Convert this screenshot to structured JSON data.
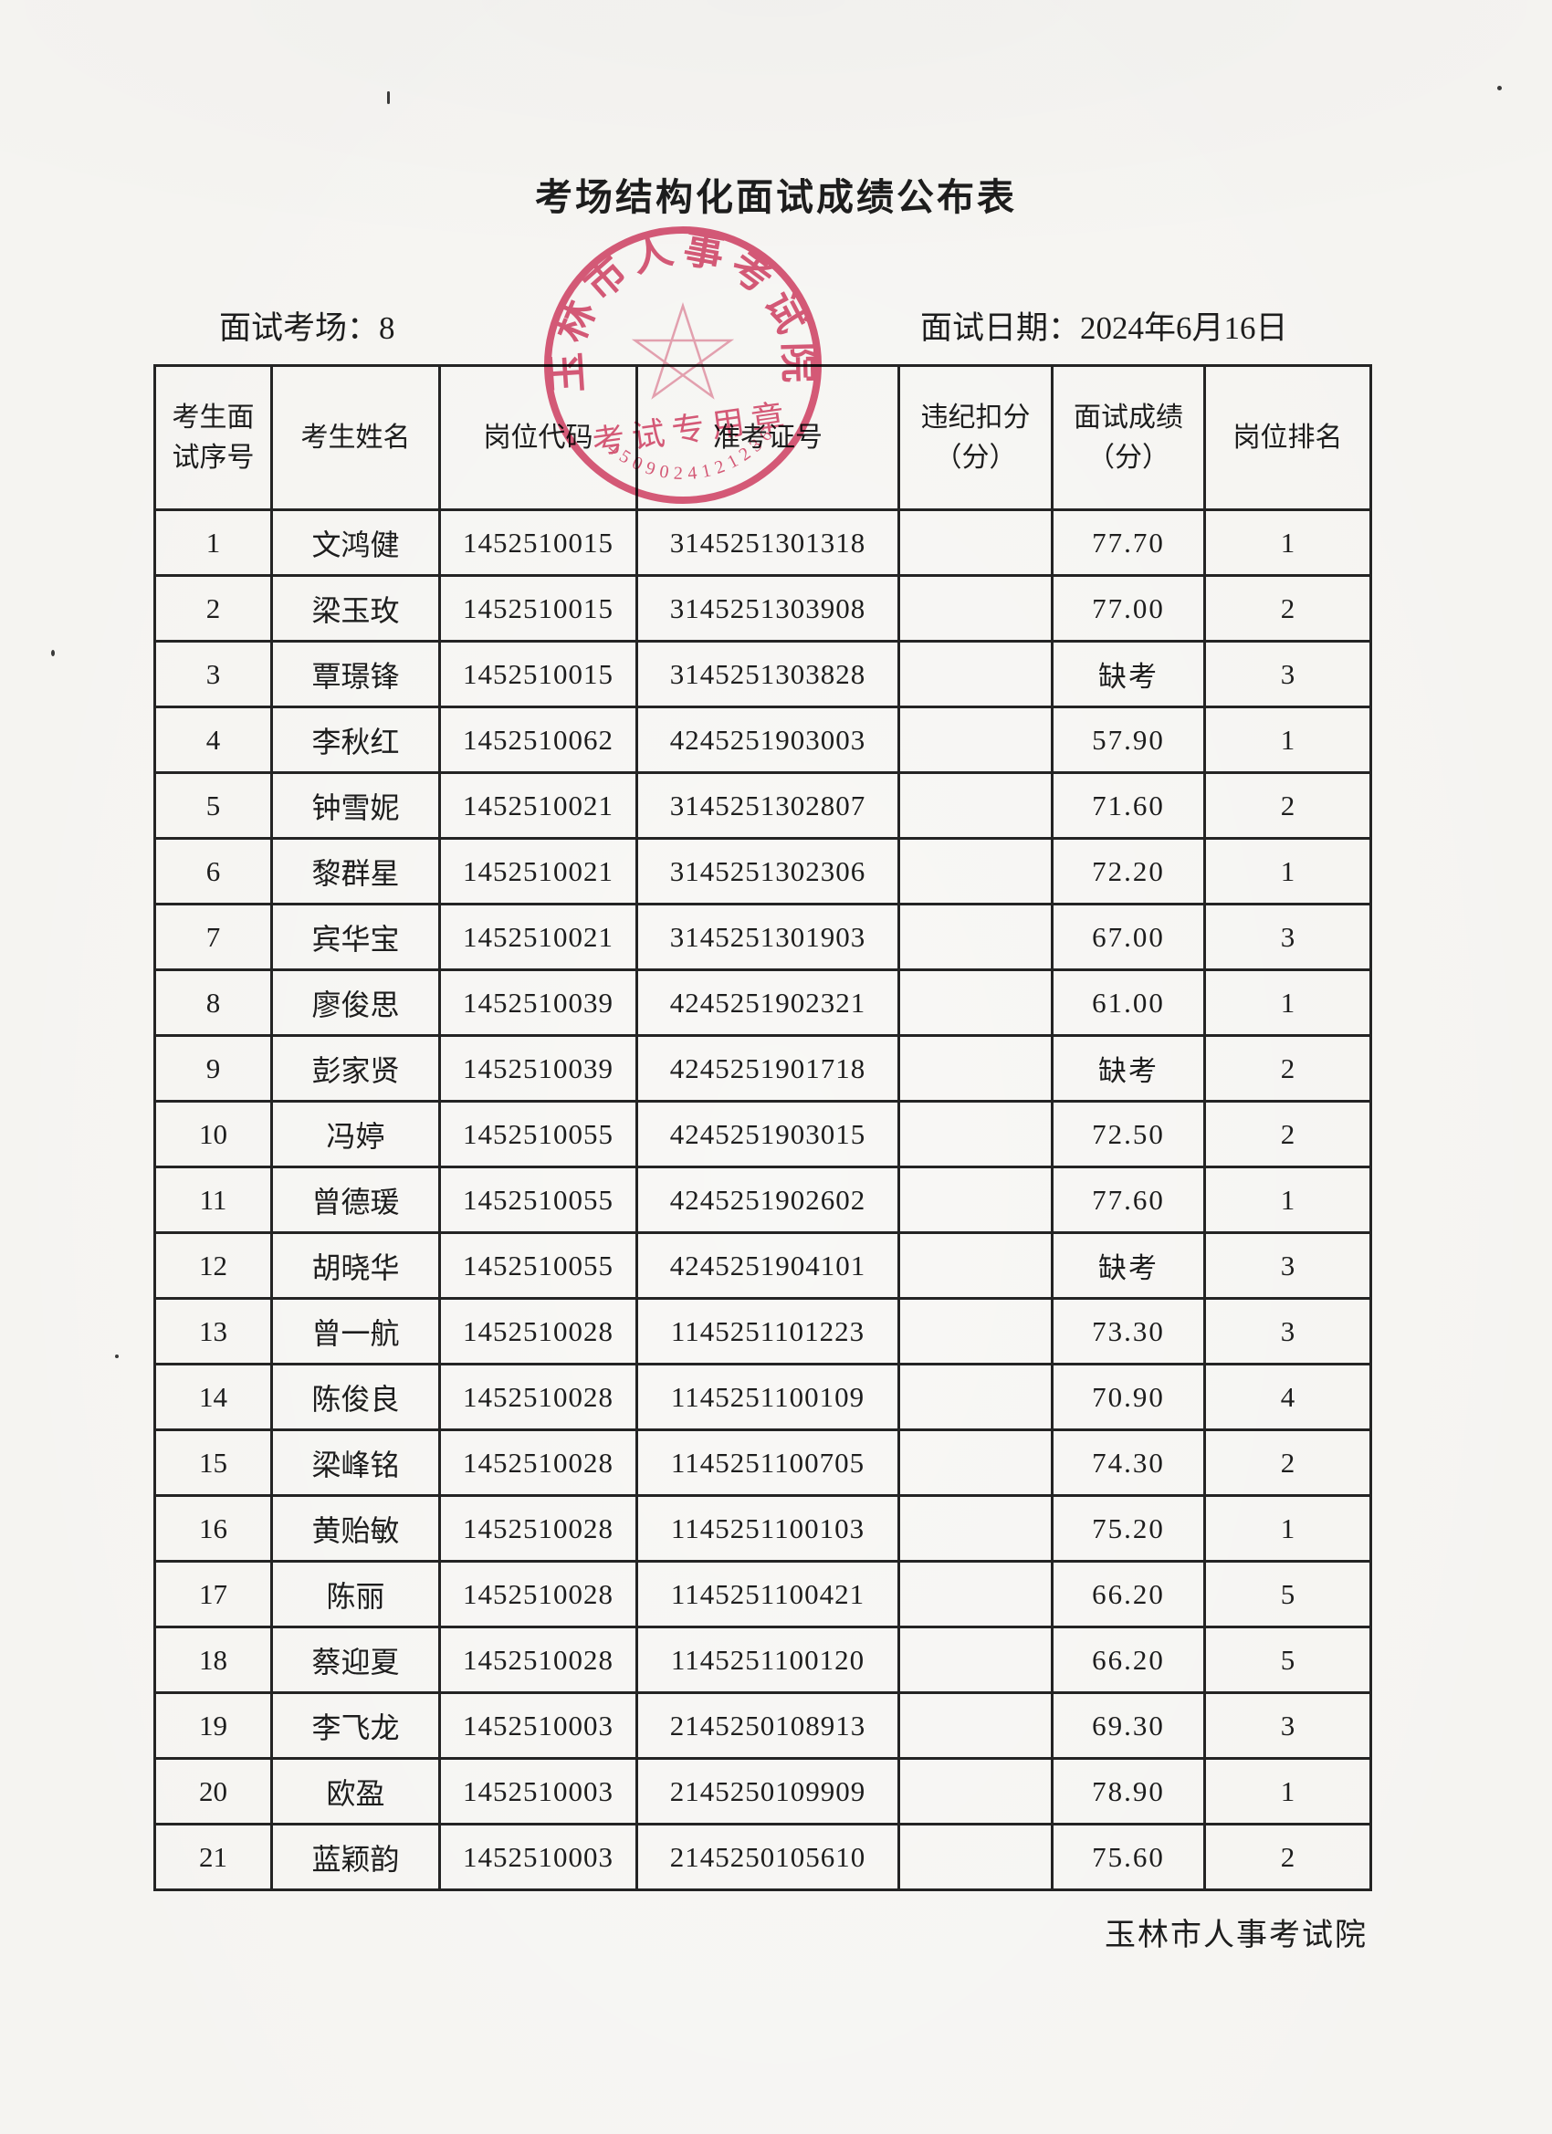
{
  "page": {
    "title": "考场结构化面试成绩公布表",
    "room_label": "面试考场：8",
    "date_label": "面试日期：2024年6月16日",
    "footer": "玉林市人事考试院"
  },
  "stamp": {
    "arc_text": "玉林市人事考试院",
    "inner_text": "考试专用章",
    "number": "4509024121236",
    "color": "#d6456a"
  },
  "table": {
    "headers": [
      {
        "lines": [
          "考生面",
          "试序号"
        ]
      },
      {
        "lines": [
          "考生姓名"
        ]
      },
      {
        "lines": [
          "岗位代码"
        ]
      },
      {
        "lines": [
          "准考证号"
        ]
      },
      {
        "lines": [
          "违纪扣分",
          "（分）"
        ]
      },
      {
        "lines": [
          "面试成绩",
          "（分）"
        ]
      },
      {
        "lines": [
          "岗位排名"
        ]
      }
    ],
    "rows": [
      [
        "1",
        "文鸿健",
        "1452510015",
        "3145251301318",
        "",
        "77.70",
        "1"
      ],
      [
        "2",
        "梁玉玫",
        "1452510015",
        "3145251303908",
        "",
        "77.00",
        "2"
      ],
      [
        "3",
        "覃璟锋",
        "1452510015",
        "3145251303828",
        "",
        "缺考",
        "3"
      ],
      [
        "4",
        "李秋红",
        "1452510062",
        "4245251903003",
        "",
        "57.90",
        "1"
      ],
      [
        "5",
        "钟雪妮",
        "1452510021",
        "3145251302807",
        "",
        "71.60",
        "2"
      ],
      [
        "6",
        "黎群星",
        "1452510021",
        "3145251302306",
        "",
        "72.20",
        "1"
      ],
      [
        "7",
        "宾华宝",
        "1452510021",
        "3145251301903",
        "",
        "67.00",
        "3"
      ],
      [
        "8",
        "廖俊思",
        "1452510039",
        "4245251902321",
        "",
        "61.00",
        "1"
      ],
      [
        "9",
        "彭家贤",
        "1452510039",
        "4245251901718",
        "",
        "缺考",
        "2"
      ],
      [
        "10",
        "冯婷",
        "1452510055",
        "4245251903015",
        "",
        "72.50",
        "2"
      ],
      [
        "11",
        "曾德瑗",
        "1452510055",
        "4245251902602",
        "",
        "77.60",
        "1"
      ],
      [
        "12",
        "胡晓华",
        "1452510055",
        "4245251904101",
        "",
        "缺考",
        "3"
      ],
      [
        "13",
        "曾一航",
        "1452510028",
        "1145251101223",
        "",
        "73.30",
        "3"
      ],
      [
        "14",
        "陈俊良",
        "1452510028",
        "1145251100109",
        "",
        "70.90",
        "4"
      ],
      [
        "15",
        "梁峰铭",
        "1452510028",
        "1145251100705",
        "",
        "74.30",
        "2"
      ],
      [
        "16",
        "黄贻敏",
        "1452510028",
        "1145251100103",
        "",
        "75.20",
        "1"
      ],
      [
        "17",
        "陈丽",
        "1452510028",
        "1145251100421",
        "",
        "66.20",
        "5"
      ],
      [
        "18",
        "蔡迎夏",
        "1452510028",
        "1145251100120",
        "",
        "66.20",
        "5"
      ],
      [
        "19",
        "李飞龙",
        "1452510003",
        "2145250108913",
        "",
        "69.30",
        "3"
      ],
      [
        "20",
        "欧盈",
        "1452510003",
        "2145250109909",
        "",
        "78.90",
        "1"
      ],
      [
        "21",
        "蓝颖韵",
        "1452510003",
        "2145250105610",
        "",
        "75.60",
        "2"
      ]
    ]
  }
}
